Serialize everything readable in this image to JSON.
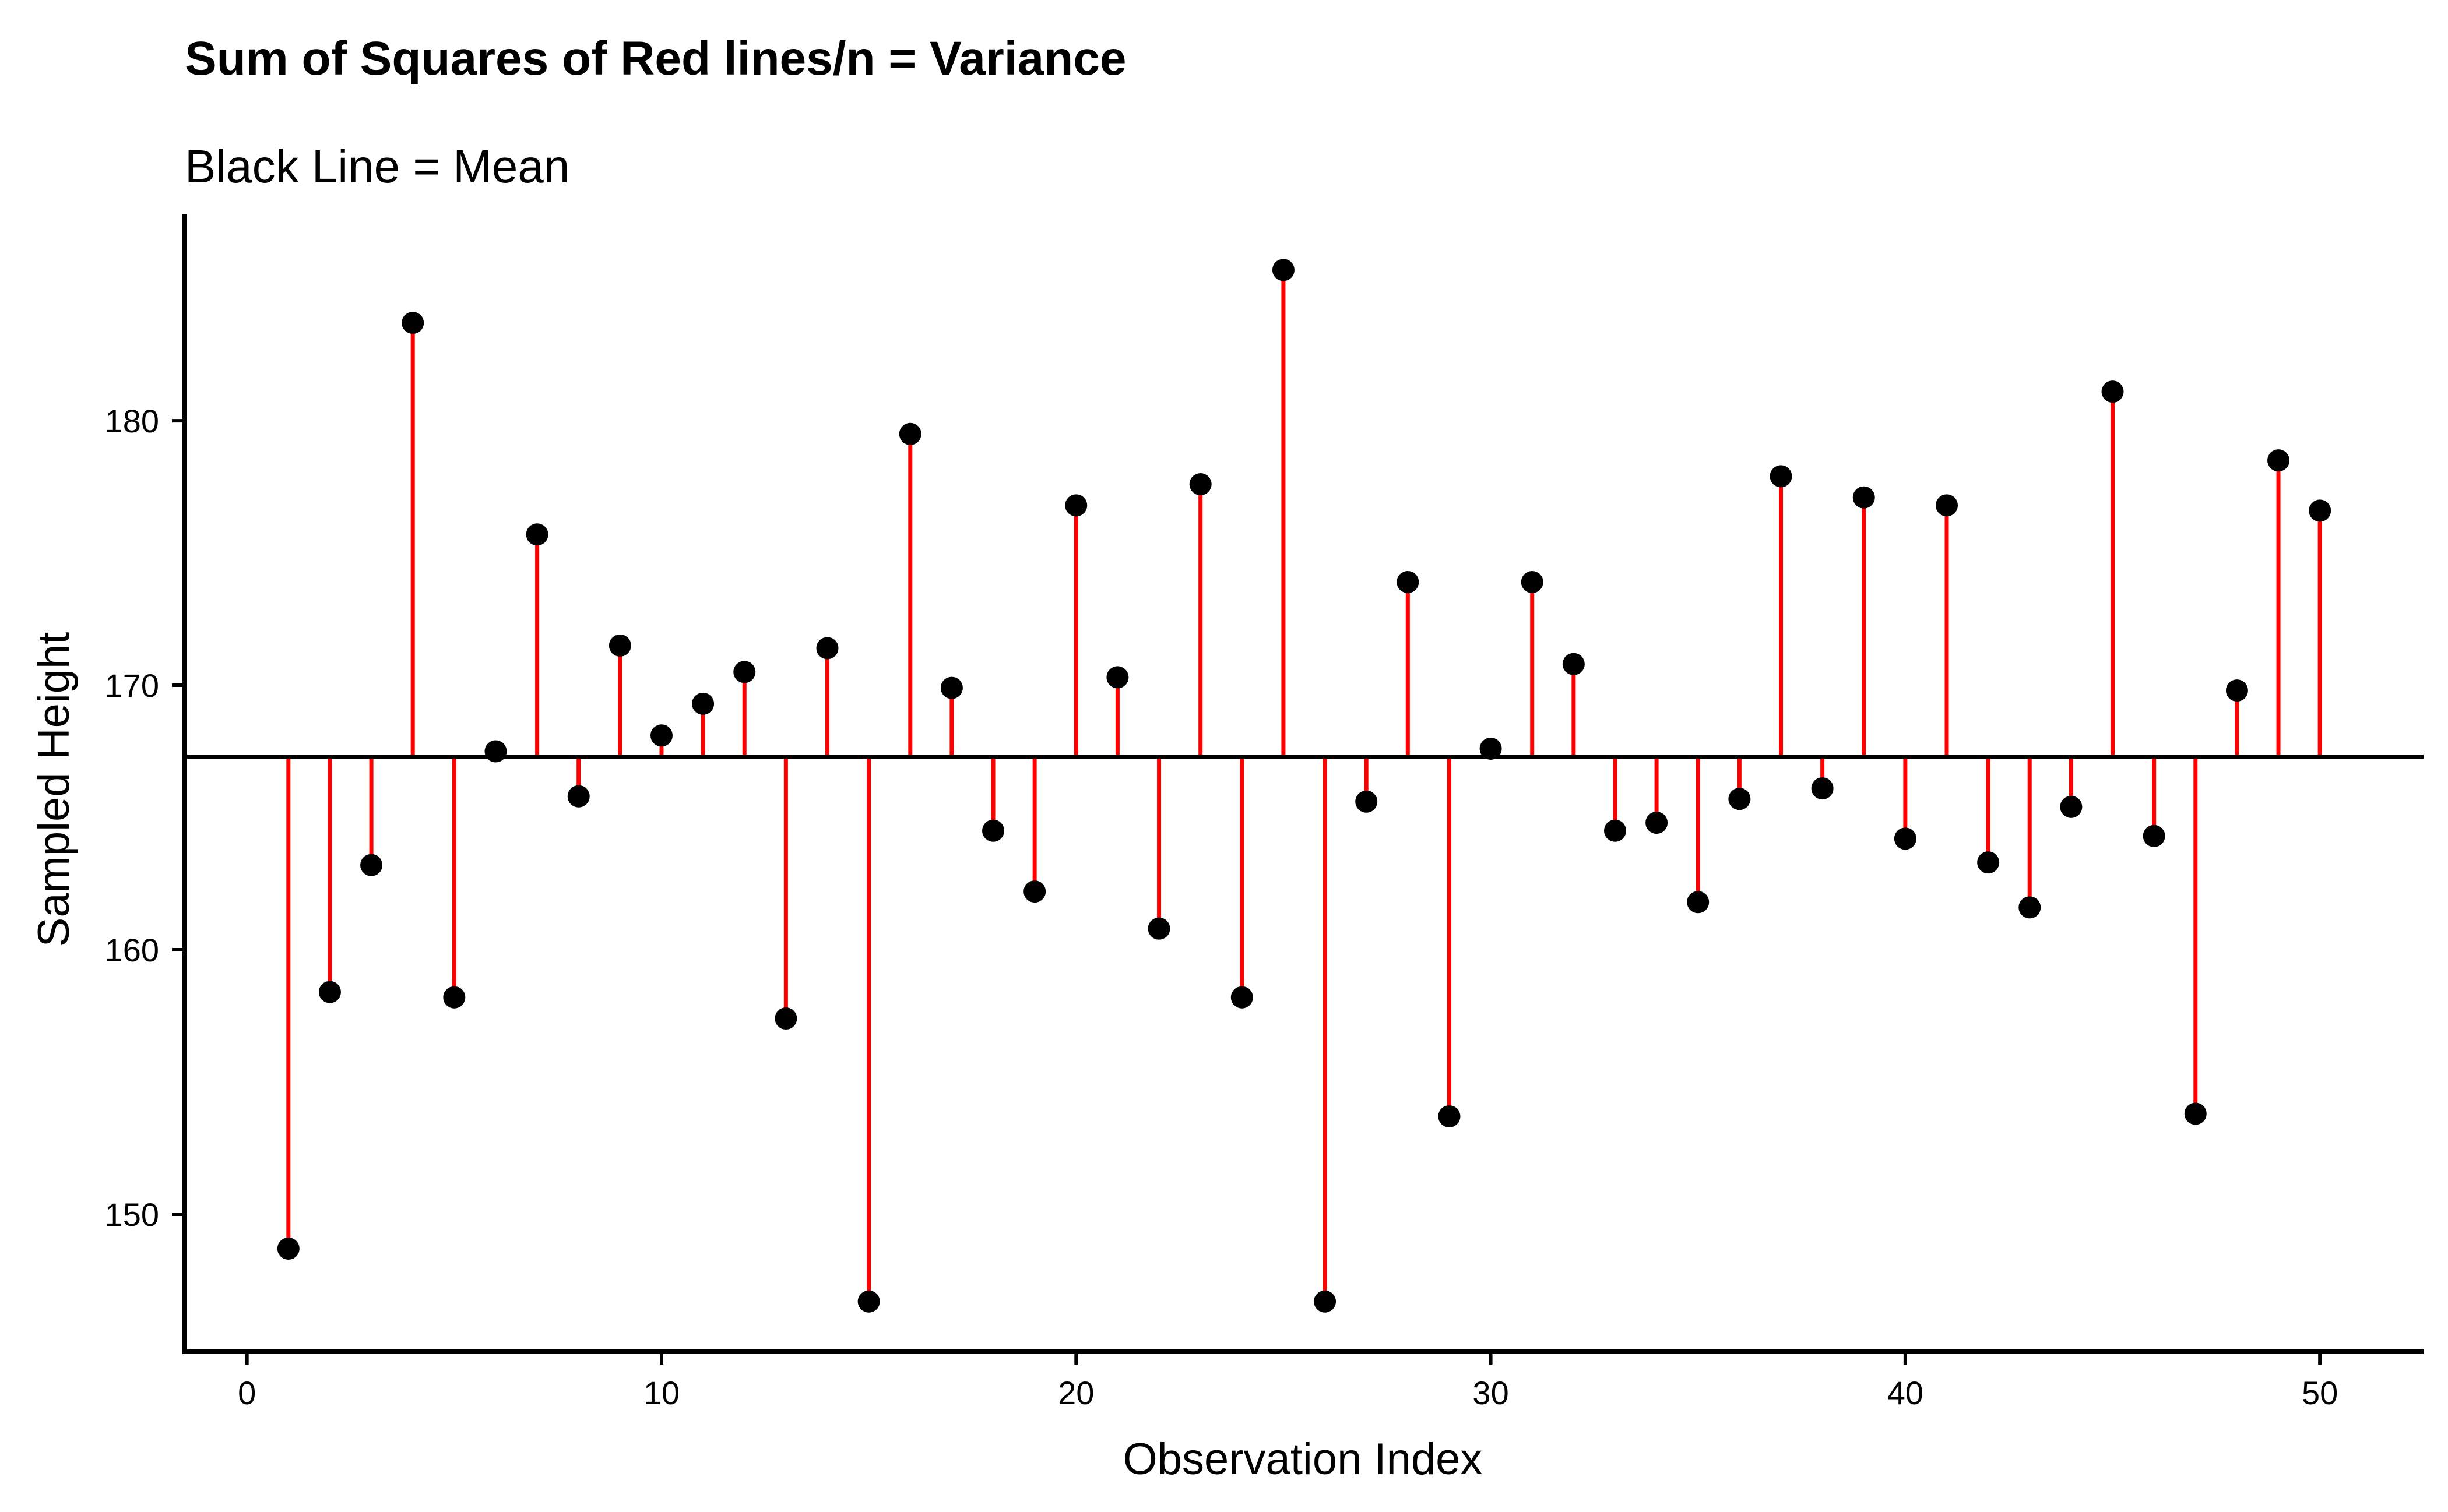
{
  "chart_data": {
    "type": "scatter",
    "title": "Sum of Squares of Red lines/n = Variance",
    "subtitle": "Black Line = Mean",
    "xlabel": "Observation Index",
    "ylabel": "Sampled Height",
    "xlim": [
      -1.5,
      52.5
    ],
    "ylim": [
      144.8,
      187.8
    ],
    "x_ticks": [
      0,
      10,
      20,
      30,
      40,
      50
    ],
    "y_ticks": [
      150,
      160,
      170,
      180
    ],
    "mean": 167.3,
    "grid": false,
    "series": [
      {
        "x": [
          1,
          2,
          3,
          4,
          5,
          6,
          7,
          8,
          9,
          10,
          11,
          12,
          13,
          14,
          15,
          16,
          17,
          18,
          19,
          20,
          21,
          22,
          23,
          24,
          25,
          26,
          27,
          28,
          29,
          30,
          31,
          32,
          33,
          34,
          35,
          36,
          37,
          38,
          39,
          40,
          41,
          42,
          43,
          44,
          45,
          46,
          47,
          48,
          49,
          50
        ],
        "values": [
          148.7,
          158.4,
          163.2,
          183.7,
          158.2,
          167.5,
          175.7,
          165.8,
          171.5,
          168.1,
          169.3,
          170.5,
          157.4,
          171.4,
          146.7,
          179.5,
          169.9,
          164.5,
          162.2,
          176.8,
          170.3,
          160.8,
          177.6,
          158.2,
          185.7,
          146.7,
          165.6,
          173.9,
          153.7,
          167.6,
          173.9,
          170.8,
          164.5,
          164.8,
          161.8,
          165.7,
          177.9,
          166.1,
          177.1,
          164.2,
          176.8,
          163.3,
          161.6,
          165.4,
          181.1,
          164.3,
          153.8,
          169.8,
          178.5,
          176.6
        ]
      }
    ],
    "colors": {
      "points": "#000000",
      "residual_lines": "#ff0000",
      "mean_line": "#000000",
      "axes": "#000000",
      "background": "#ffffff"
    }
  }
}
